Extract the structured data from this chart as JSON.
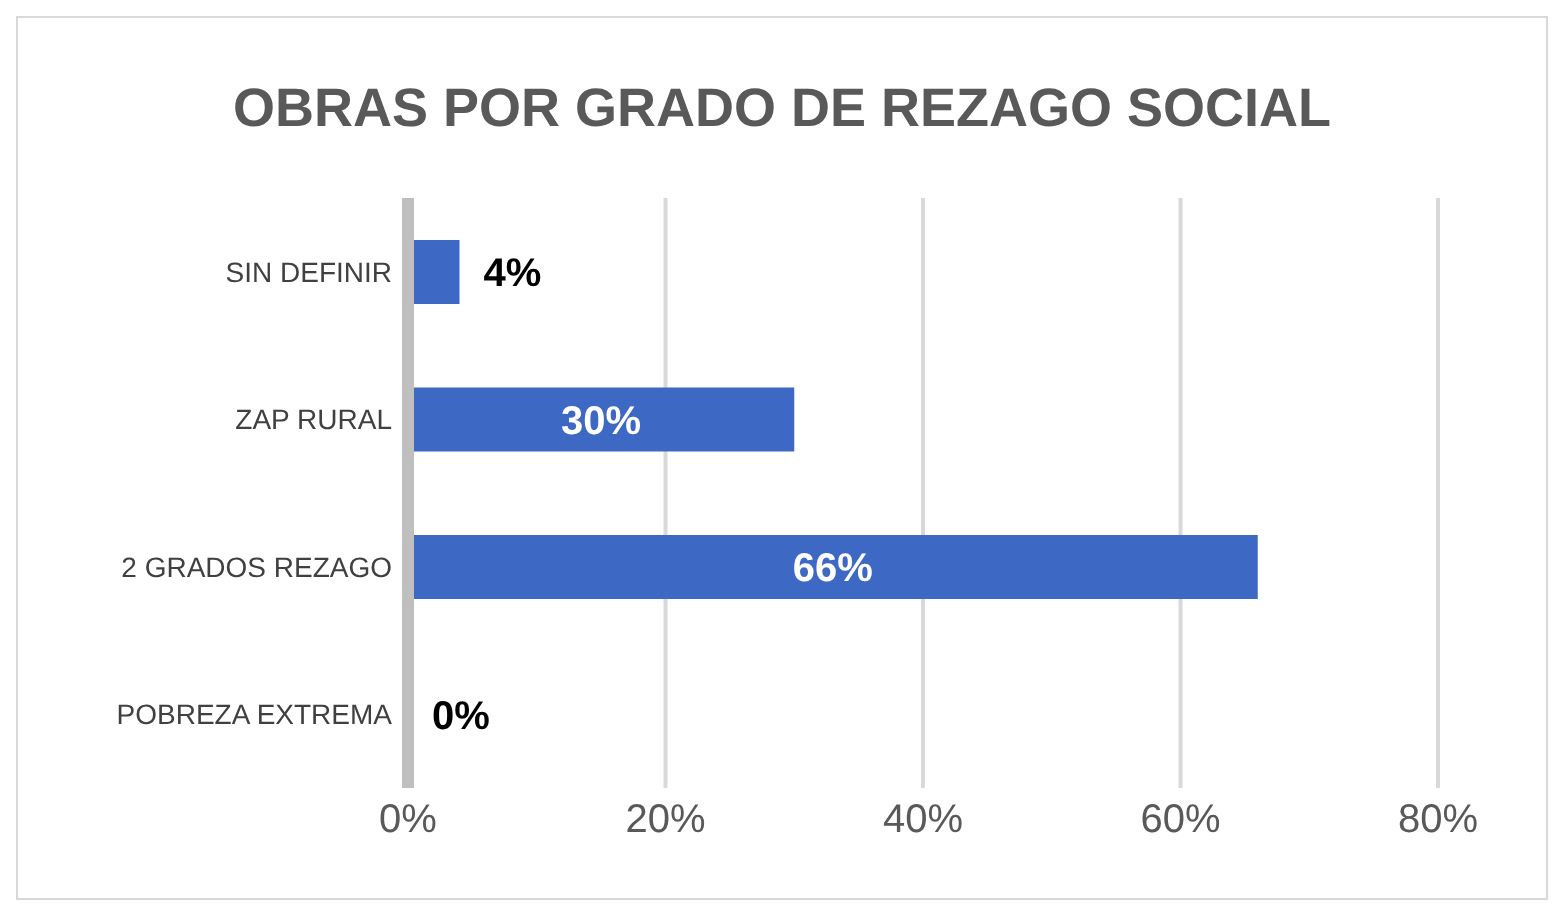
{
  "chart_data": {
    "type": "bar",
    "orientation": "horizontal",
    "title": "OBRAS POR GRADO DE REZAGO SOCIAL",
    "categories": [
      "SIN DEFINIR",
      "ZAP RURAL",
      "2 GRADOS REZAGO",
      "POBREZA EXTREMA"
    ],
    "values": [
      4,
      30,
      66,
      0
    ],
    "value_labels": [
      "4%",
      "30%",
      "66%",
      "0%"
    ],
    "color": "#3d69c4",
    "xlim": [
      0,
      80
    ],
    "xticks": [
      {
        "value": 0,
        "label": "0%"
      },
      {
        "value": 20,
        "label": "20%"
      },
      {
        "value": 40,
        "label": "40%"
      },
      {
        "value": 60,
        "label": "60%"
      },
      {
        "value": 80,
        "label": "80%"
      }
    ],
    "grid": "x",
    "legend": false
  }
}
